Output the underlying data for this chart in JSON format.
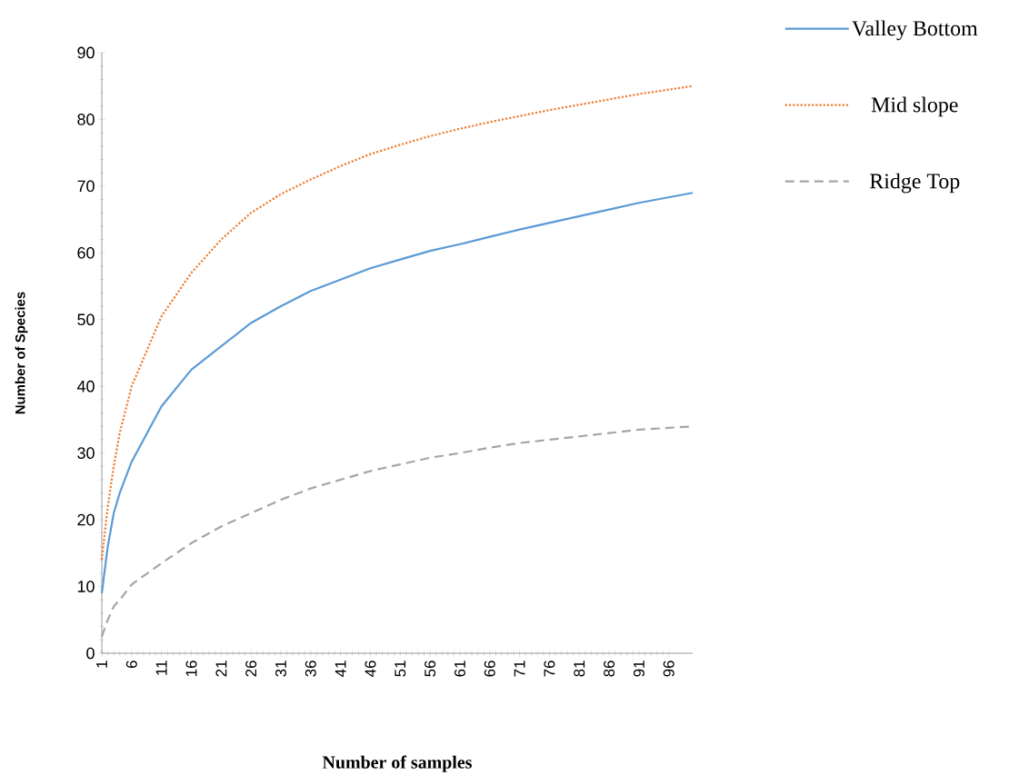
{
  "chart_data": {
    "type": "line",
    "xlabel": "Number of  samples",
    "ylabel": "Number of Species",
    "x": [
      1,
      2,
      3,
      4,
      6,
      11,
      16,
      21,
      26,
      31,
      36,
      41,
      46,
      51,
      56,
      61,
      66,
      71,
      76,
      81,
      86,
      91,
      100
    ],
    "series": [
      {
        "name": "Valley  Bottom",
        "color": "#5b9bd5",
        "line_style": "solid",
        "values": [
          9,
          16,
          21,
          24,
          28.7,
          37,
          42.5,
          46,
          49.5,
          52,
          54.3,
          56,
          57.7,
          59,
          60.3,
          61.3,
          62.4,
          63.5,
          64.5,
          65.5,
          66.5,
          67.5,
          69
        ]
      },
      {
        "name": "Mid slope",
        "color": "#ed7d31",
        "line_style": "dotted",
        "values": [
          14,
          22,
          28,
          33,
          40,
          50.5,
          57,
          62,
          66,
          68.8,
          71,
          73,
          74.8,
          76.2,
          77.5,
          78.6,
          79.6,
          80.5,
          81.4,
          82.2,
          83,
          83.8,
          85
        ]
      },
      {
        "name": "Ridge Top",
        "color": "#a5a5a5",
        "line_style": "dashed",
        "values": [
          2.5,
          5,
          7,
          8,
          10.3,
          13.5,
          16.5,
          19,
          21,
          23,
          24.7,
          26,
          27.3,
          28.3,
          29.3,
          30,
          30.8,
          31.5,
          32,
          32.5,
          33,
          33.5,
          34
        ]
      }
    ],
    "xlim": [
      1,
      100
    ],
    "xticks": [
      1,
      6,
      11,
      16,
      21,
      26,
      31,
      36,
      41,
      46,
      51,
      56,
      61,
      66,
      71,
      76,
      81,
      86,
      91,
      96
    ],
    "ylim": [
      0,
      90
    ],
    "yticks": [
      0,
      10,
      20,
      30,
      40,
      50,
      60,
      70,
      80,
      90
    ],
    "grid": false,
    "legend": "top right",
    "marker": "none"
  }
}
